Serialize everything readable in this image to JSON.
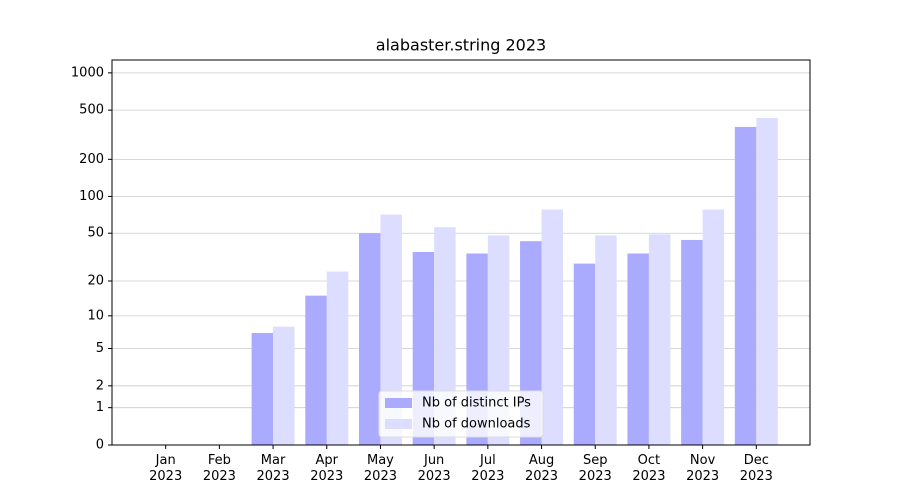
{
  "chart_data": {
    "type": "bar",
    "title": "alabaster.string 2023",
    "categories": [
      "Jan\n2023",
      "Feb\n2023",
      "Mar\n2023",
      "Apr\n2023",
      "May\n2023",
      "Jun\n2023",
      "Jul\n2023",
      "Aug\n2023",
      "Sep\n2023",
      "Oct\n2023",
      "Nov\n2023",
      "Dec\n2023"
    ],
    "series": [
      {
        "name": "Nb of distinct IPs",
        "color": "#aaaaff",
        "values": [
          0,
          0,
          7,
          15,
          50,
          35,
          34,
          43,
          28,
          34,
          44,
          366
        ]
      },
      {
        "name": "Nb of downloads",
        "color": "#ddddff",
        "values": [
          0,
          0,
          8,
          24,
          71,
          56,
          48,
          78,
          48,
          49,
          78,
          432
        ]
      }
    ],
    "y_scale": "log1p",
    "ylim": [
      0,
      1270
    ],
    "yticks": [
      0,
      1,
      2,
      5,
      10,
      20,
      50,
      100,
      200,
      500,
      1000
    ],
    "grid": true,
    "legend": "lower center"
  }
}
